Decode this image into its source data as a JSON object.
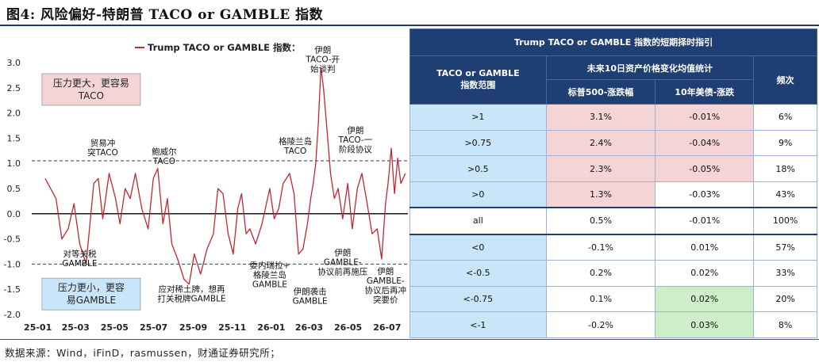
{
  "figure_title": "图4: 风险偏好-特朗普 TACO or GAMBLE  指数",
  "source_note": "数据来源：Wind，iFinD，rasmussen，财通证券研究所；",
  "chart_data": {
    "type": "line",
    "title": "",
    "legend": [
      "Trump TACO or GAMBLE 指数："
    ],
    "legend_position": "top-center",
    "series": [
      {
        "name": "Trump TACO or GAMBLE 指数：",
        "color": "#c0282e",
        "x": [
          "2025-01-15",
          "2025-02-01",
          "2025-02-10",
          "2025-02-20",
          "2025-03-01",
          "2025-03-10",
          "2025-03-20",
          "2025-04-01",
          "2025-04-08",
          "2025-04-15",
          "2025-04-25",
          "2025-05-05",
          "2025-05-12",
          "2025-05-20",
          "2025-05-28",
          "2025-06-05",
          "2025-06-15",
          "2025-06-25",
          "2025-07-03",
          "2025-07-10",
          "2025-07-18",
          "2025-07-25",
          "2025-08-01",
          "2025-08-10",
          "2025-08-20",
          "2025-08-28",
          "2025-09-05",
          "2025-09-15",
          "2025-09-25",
          "2025-10-05",
          "2025-10-12",
          "2025-10-20",
          "2025-10-28",
          "2025-11-05",
          "2025-11-12",
          "2025-11-18",
          "2025-11-25",
          "2025-12-01",
          "2025-12-10",
          "2025-12-20",
          "2026-01-01",
          "2026-01-08",
          "2026-01-15",
          "2026-01-22",
          "2026-02-01",
          "2026-02-08",
          "2026-02-15",
          "2026-02-22",
          "2026-03-01",
          "2026-03-06",
          "2026-03-10",
          "2026-03-14",
          "2026-03-18",
          "2026-03-22",
          "2026-03-26",
          "2026-04-01",
          "2026-04-06",
          "2026-04-12",
          "2026-04-18",
          "2026-04-25",
          "2026-05-03",
          "2026-05-10",
          "2026-05-18",
          "2026-05-25",
          "2026-06-01",
          "2026-06-10",
          "2026-06-18",
          "2026-06-25",
          "2026-07-01",
          "2026-07-05",
          "2026-07-10",
          "2026-07-15",
          "2026-07-20",
          "2026-07-25",
          "2026-08-01"
        ],
        "values": [
          0.7,
          0.3,
          -0.5,
          -0.3,
          0.2,
          -0.6,
          -1.0,
          0.6,
          0.7,
          -0.1,
          0.8,
          0.3,
          -0.2,
          0.5,
          0.3,
          0.8,
          0.1,
          -0.3,
          0.7,
          0.9,
          -0.2,
          0.3,
          -0.6,
          -0.9,
          -1.3,
          -1.4,
          -0.8,
          -1.2,
          -0.7,
          -0.4,
          0.5,
          0.4,
          -0.4,
          -0.8,
          0.1,
          0.4,
          -0.4,
          -0.3,
          -0.6,
          -0.2,
          0.5,
          -0.1,
          0.1,
          0.6,
          0.8,
          0.4,
          -0.8,
          -0.7,
          -0.2,
          0.3,
          0.6,
          1.0,
          1.8,
          2.9,
          2.5,
          1.6,
          0.8,
          0.3,
          0.5,
          -0.1,
          0.6,
          -0.3,
          0.5,
          0.8,
          0.3,
          -0.4,
          -0.3,
          -0.9,
          0.2,
          0.6,
          1.3,
          0.4,
          1.1,
          0.6,
          0.8
        ]
      }
    ],
    "xlim": [
      "2024-12-25",
      "2026-08-05"
    ],
    "xticks": [
      {
        "label": "25-01",
        "date": "2025-01-01"
      },
      {
        "label": "25-03",
        "date": "2025-03-01"
      },
      {
        "label": "25-05",
        "date": "2025-05-01"
      },
      {
        "label": "25-07",
        "date": "2025-07-01"
      },
      {
        "label": "25-09",
        "date": "2025-09-01"
      },
      {
        "label": "25-11",
        "date": "2025-11-01"
      },
      {
        "label": "26-01",
        "date": "2026-01-01"
      },
      {
        "label": "26-03",
        "date": "2026-03-01"
      },
      {
        "label": "26-05",
        "date": "2026-05-01"
      },
      {
        "label": "26-07",
        "date": "2026-07-01"
      }
    ],
    "ylim": [
      -2.0,
      3.0
    ],
    "yticks": [
      "3.0",
      "2.5",
      "2.0",
      "1.5",
      "1.0",
      "0.5",
      "0.0",
      "-0.5",
      "-1.0",
      "-1.5",
      "-2.0"
    ],
    "reference_lines": [
      {
        "y": 1.05,
        "style": "dashed",
        "color": "#1f3e72"
      },
      {
        "y": 0.0,
        "style": "solid",
        "color": "#000000"
      },
      {
        "y": -1.0,
        "style": "dashed",
        "color": "#1f3e72"
      }
    ],
    "zone_boxes": [
      {
        "text_lines": [
          "压力更大，更容易",
          "TACO"
        ],
        "fill": "#f4d4d5",
        "anchor": {
          "date": "2025-01-10",
          "y": 2.78
        }
      },
      {
        "text_lines": [
          "压力更小，更容",
          "易GAMBLE"
        ],
        "fill": "#c9e5fa",
        "anchor": {
          "date": "2025-01-10",
          "y": -1.28
        }
      }
    ],
    "annotations": [
      {
        "text_lines": [
          "贸易冲",
          "突TACO"
        ],
        "date": "2025-04-15",
        "y": 1.35
      },
      {
        "text_lines": [
          "鲍威尔",
          "TACO"
        ],
        "date": "2025-07-20",
        "y": 1.18
      },
      {
        "text_lines": [
          "格陵兰岛",
          "TACO"
        ],
        "date": "2026-02-10",
        "y": 1.38
      },
      {
        "text_lines": [
          "伊朗",
          "TACO-开",
          "始谈判"
        ],
        "date": "2026-03-25",
        "y": 3.2
      },
      {
        "text_lines": [
          "伊朗",
          "TACO-一",
          "阶段协议"
        ],
        "date": "2026-05-15",
        "y": 1.6
      },
      {
        "text_lines": [
          "对等关税",
          "GAMBLE"
        ],
        "date": "2025-03-10",
        "y": -0.85
      },
      {
        "text_lines": [
          "应对稀土牌，想再",
          "打关税牌GAMBLE"
        ],
        "date": "2025-09-01",
        "y": -1.55
      },
      {
        "text_lines": [
          "委内瑞拉+",
          "格陵兰岛",
          "GAMBLE"
        ],
        "date": "2026-01-01",
        "y": -1.08
      },
      {
        "text_lines": [
          "伊朗袭击",
          "GAMBLE"
        ],
        "date": "2026-03-05",
        "y": -1.6
      },
      {
        "text_lines": [
          "伊朗",
          "GAMBLE-",
          "协议前再施压"
        ],
        "date": "2026-04-25",
        "y": -0.83
      },
      {
        "text_lines": [
          "伊朗",
          "GAMBLE-",
          "协议后再冲",
          "突要价"
        ],
        "date": "2026-07-01",
        "y": -1.2
      }
    ]
  },
  "table": {
    "title": "Trump TACO or GAMBLE 指数的短期择时指引",
    "col_range_header": "TACO or GAMBLE\n指数范围",
    "group_header": "未来10日资产价格变化均值统计",
    "col_sp500": "标普500-涨跌幅",
    "col_ust": "10年美债-涨跌",
    "col_freq": "频次",
    "rows": [
      {
        "range": ">1",
        "sp500": "3.1%",
        "ust": "-0.01%",
        "freq": "6%",
        "sp_hl": "pink",
        "ust_hl": "pink"
      },
      {
        "range": ">0.75",
        "sp500": "2.4%",
        "ust": "-0.04%",
        "freq": "9%",
        "sp_hl": "pink",
        "ust_hl": "pink"
      },
      {
        "range": ">0.5",
        "sp500": "2.3%",
        "ust": "-0.05%",
        "freq": "18%",
        "sp_hl": "pink",
        "ust_hl": "pink"
      },
      {
        "range": ">0",
        "sp500": "1.3%",
        "ust": "-0.03%",
        "freq": "43%",
        "sp_hl": "pink",
        "ust_hl": ""
      },
      {
        "range": "all",
        "sp500": "0.5%",
        "ust": "-0.01%",
        "freq": "100%",
        "sp_hl": "",
        "ust_hl": ""
      },
      {
        "range": "<0",
        "sp500": "-0.1%",
        "ust": "0.01%",
        "freq": "57%",
        "sp_hl": "",
        "ust_hl": ""
      },
      {
        "range": "<-0.5",
        "sp500": "0.2%",
        "ust": "0.02%",
        "freq": "33%",
        "sp_hl": "",
        "ust_hl": ""
      },
      {
        "range": "<-0.75",
        "sp500": "0.1%",
        "ust": "0.02%",
        "freq": "20%",
        "sp_hl": "",
        "ust_hl": "green"
      },
      {
        "range": "<-1",
        "sp500": "-0.2%",
        "ust": "0.03%",
        "freq": "8%",
        "sp_hl": "",
        "ust_hl": "green"
      }
    ]
  }
}
